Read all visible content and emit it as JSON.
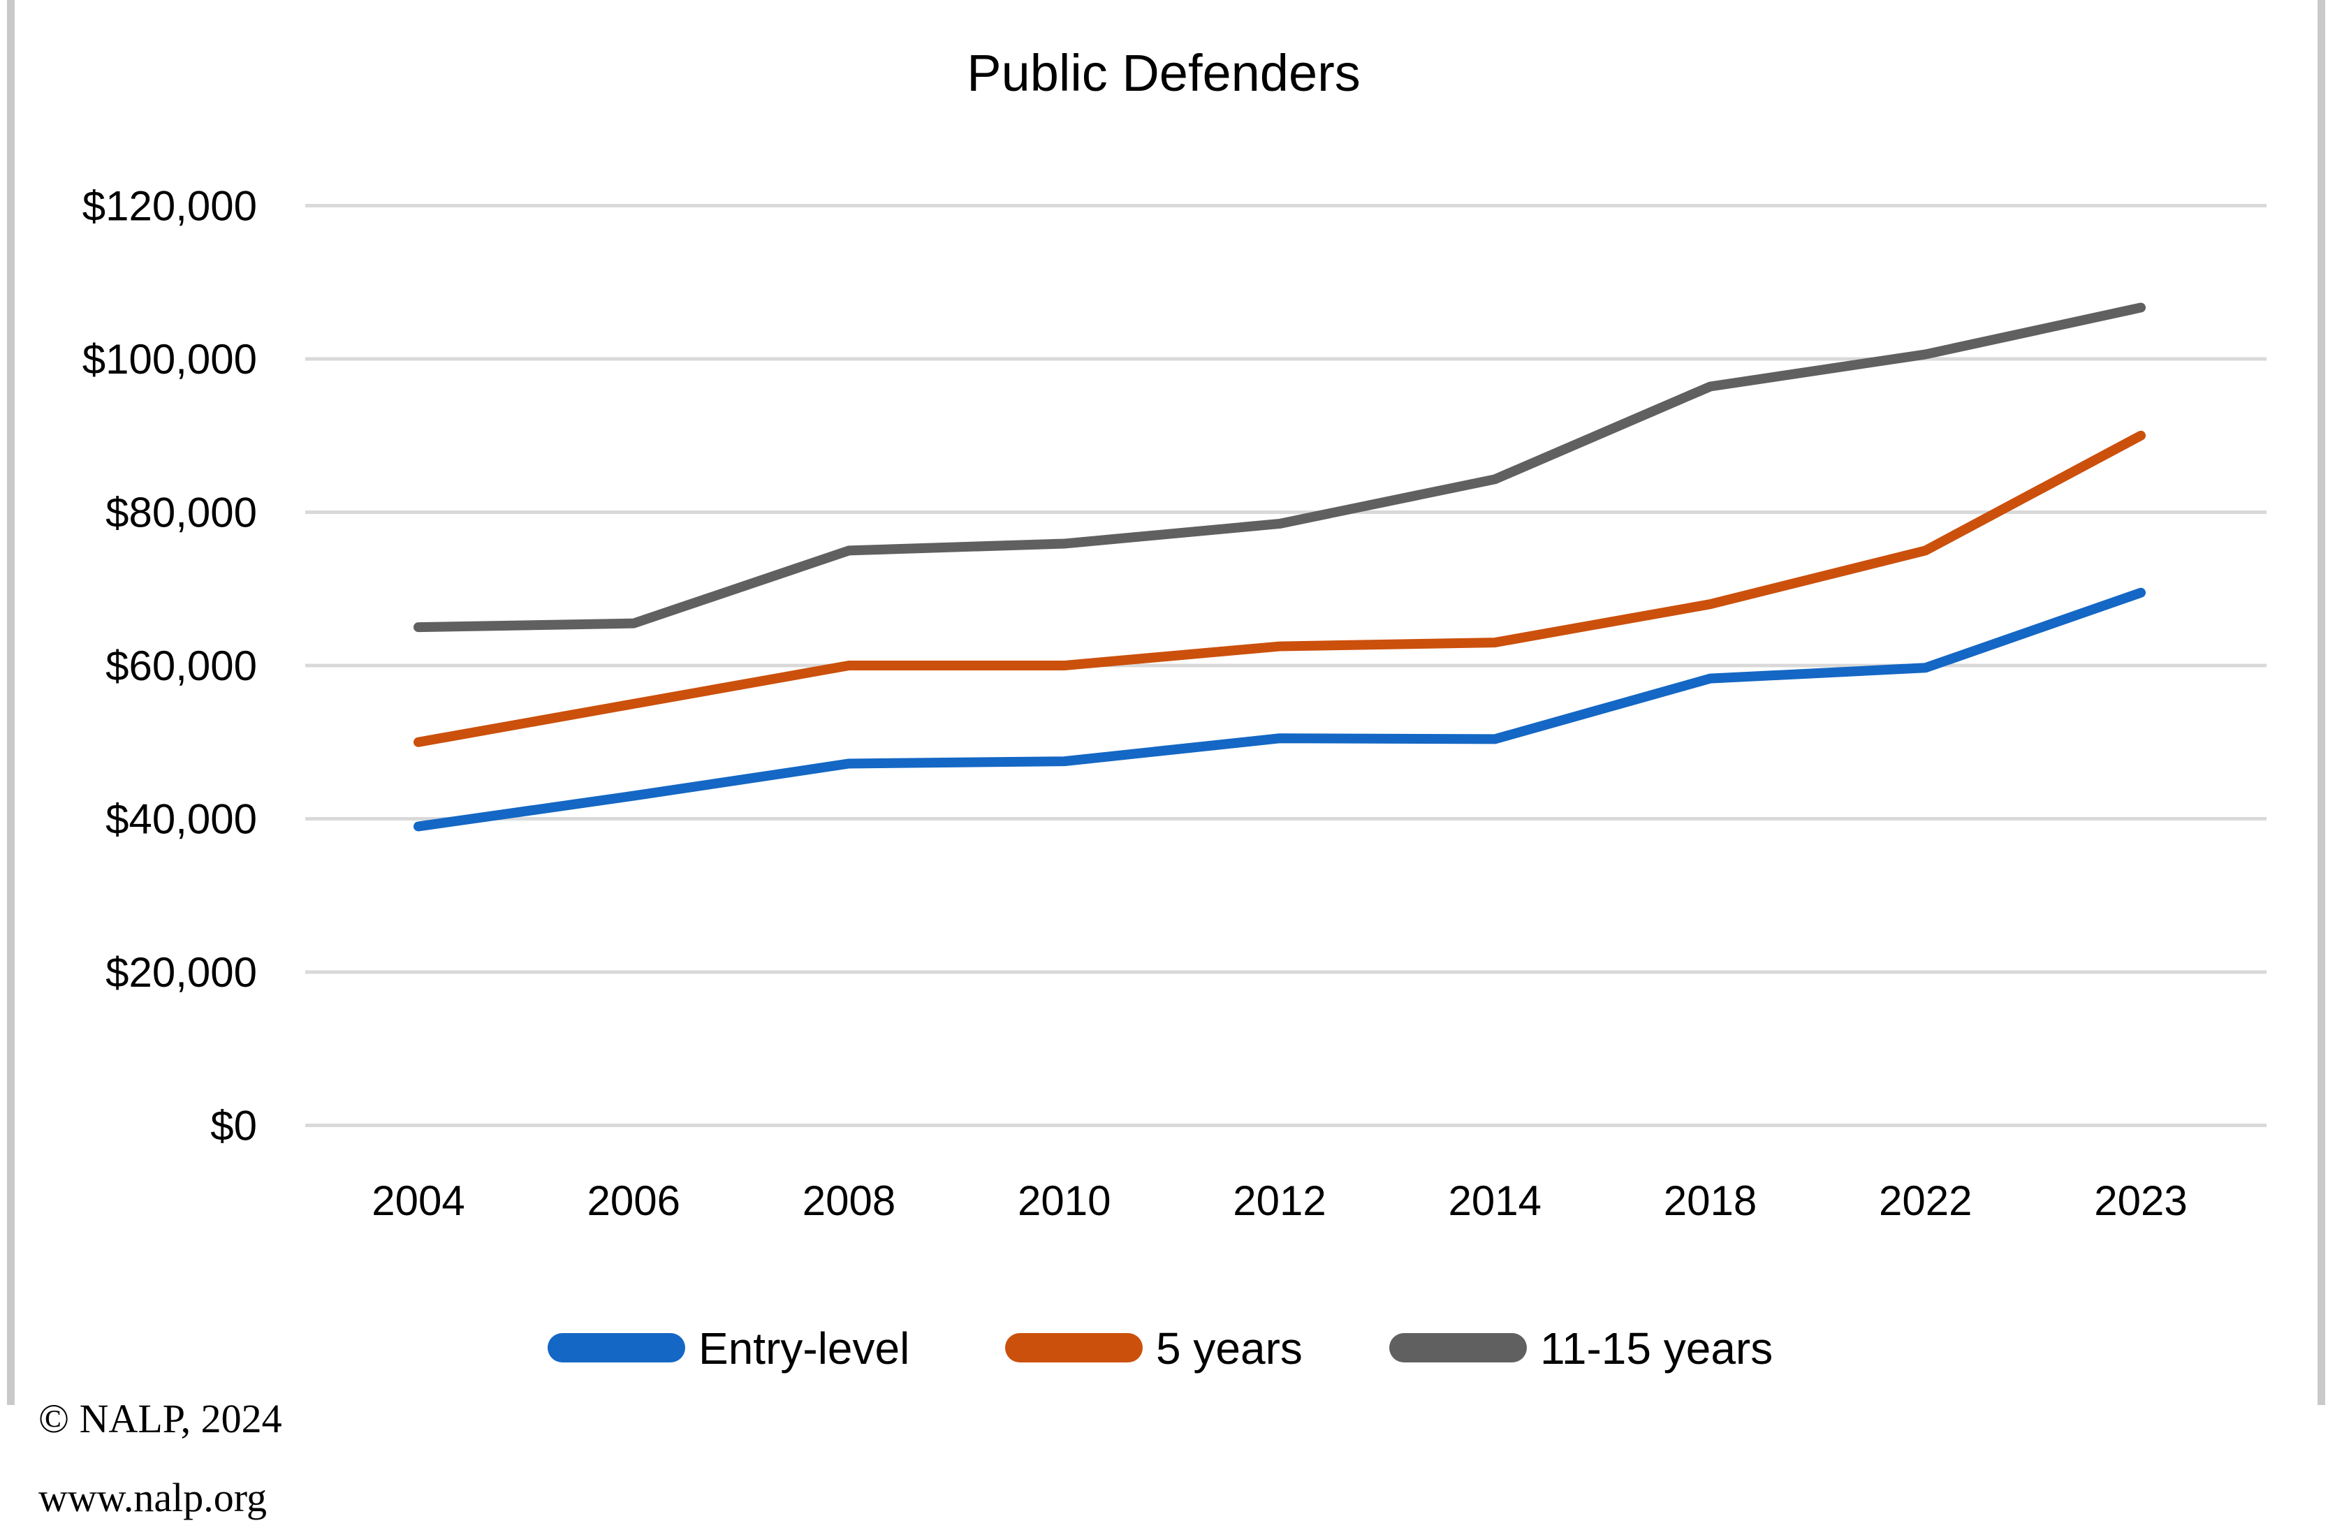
{
  "chart_data": {
    "type": "line",
    "title": "Public Defenders",
    "categories": [
      "2004",
      "2006",
      "2008",
      "2010",
      "2012",
      "2014",
      "2018",
      "2022",
      "2023"
    ],
    "series": [
      {
        "name": "Entry-level",
        "color": "#1467C4",
        "values": [
          39000,
          43000,
          47200,
          47500,
          50500,
          50400,
          58300,
          59700,
          69500
        ]
      },
      {
        "name": "5 years",
        "color": "#CB500C",
        "values": [
          50000,
          55000,
          60000,
          60000,
          62500,
          63000,
          68000,
          75000,
          90000
        ]
      },
      {
        "name": "11-15 years",
        "color": "#606060",
        "values": [
          65000,
          65500,
          75000,
          75900,
          78500,
          84300,
          96400,
          100600,
          106700
        ]
      }
    ],
    "ylim": [
      0,
      120000
    ],
    "ytick_step": 20000,
    "ytick_labels": [
      "$0",
      "$20,000",
      "$40,000",
      "$60,000",
      "$80,000",
      "$100,000",
      "$120,000"
    ],
    "xlabel": "",
    "ylabel": "",
    "grid": "horizontal",
    "gridline_color": "#D9D9D9",
    "legend_position": "bottom"
  },
  "footer": {
    "line1": "© NALP, 2024",
    "line2": "www.nalp.org"
  }
}
